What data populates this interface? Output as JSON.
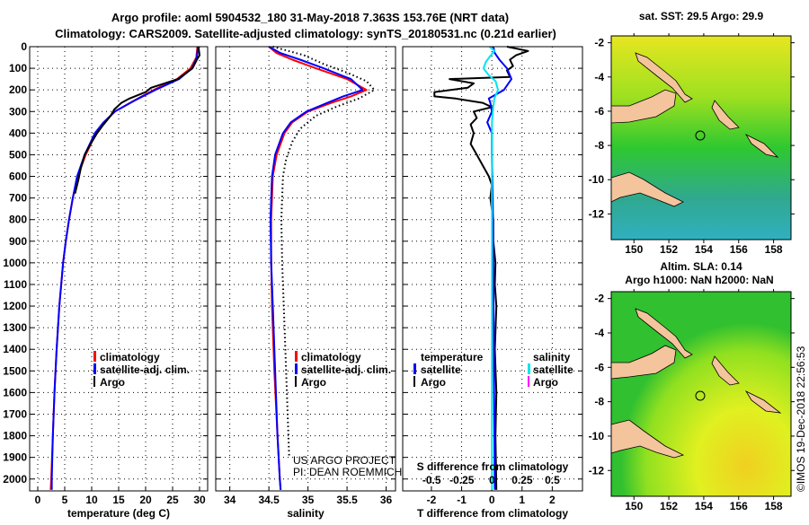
{
  "title_line1": "Argo profile: aoml 5904532_180 31-May-2018 7.363S 153.76E (NRT data)",
  "title_line2": "Climatology: CARS2009. Satellite-adjusted climatology: synTS_20180531.nc (0.21d earlier)",
  "colors": {
    "climatology": "#ff0000",
    "satellite": "#0000ff",
    "argo": "#000000",
    "sal_satellite": "#00e5ee",
    "sal_argo": "#ff00ff"
  },
  "credit": [
    "US ARGO PROJECT",
    "PI: DEAN ROEMMICH"
  ],
  "copyright": "©IMOS 19-Dec-2018 22:56:53",
  "chart_data": [
    {
      "type": "line",
      "name": "temperature-profile",
      "xlabel": "temperature (deg C)",
      "ylabel": "",
      "xlim": [
        -1.5,
        31.5
      ],
      "ylim": [
        2055,
        0
      ],
      "xticks": [
        0,
        5,
        10,
        15,
        20,
        25,
        30
      ],
      "yticks": [
        0,
        100,
        200,
        300,
        400,
        500,
        600,
        700,
        800,
        900,
        1000,
        1100,
        1200,
        1300,
        1400,
        1500,
        1600,
        1700,
        1800,
        1900,
        2000
      ],
      "legend": [
        "climatology",
        "satellite-adj. clim.",
        "Argo"
      ],
      "series": [
        {
          "name": "climatology",
          "depth": [
            0,
            50,
            100,
            150,
            200,
            250,
            300,
            350,
            400,
            500,
            600,
            700,
            800,
            900,
            1000,
            1200,
            1400,
            1600,
            1800,
            2000,
            2050
          ],
          "values": [
            29.6,
            29.4,
            28.3,
            25.8,
            21.5,
            17.8,
            14.3,
            12.3,
            10.8,
            8.9,
            7.4,
            6.5,
            5.8,
            5.2,
            4.7,
            4.0,
            3.5,
            3.1,
            2.8,
            2.5,
            2.4
          ]
        },
        {
          "name": "satellite-adj. clim.",
          "depth": [
            0,
            50,
            100,
            150,
            200,
            250,
            300,
            350,
            400,
            500,
            600,
            700,
            800,
            900,
            1000,
            1200,
            1400,
            1600,
            1800,
            2000,
            2050
          ],
          "values": [
            29.7,
            29.5,
            28.6,
            26.2,
            21.8,
            17.9,
            14.3,
            12.2,
            10.6,
            8.7,
            7.3,
            6.5,
            5.8,
            5.2,
            4.7,
            4.0,
            3.5,
            3.1,
            2.8,
            2.6,
            2.6
          ]
        },
        {
          "name": "Argo",
          "depth": [
            0,
            40,
            60,
            100,
            150,
            190,
            210,
            240,
            260,
            290,
            320,
            360,
            400,
            450,
            500,
            560,
            620,
            680
          ],
          "values": [
            29.8,
            30.0,
            29.5,
            28.7,
            26.0,
            21.0,
            20.0,
            17.0,
            15.5,
            14.2,
            13.5,
            12.2,
            11.0,
            9.8,
            8.7,
            8.0,
            7.5,
            6.9
          ]
        }
      ]
    },
    {
      "type": "line",
      "name": "salinity-profile",
      "xlabel": "salinity",
      "xlim": [
        33.82,
        36.12
      ],
      "ylim": [
        2055,
        0
      ],
      "xticks": [
        34,
        34.5,
        35,
        35.5,
        36
      ],
      "legend": [
        "climatology",
        "satellite-adj. clim.",
        "Argo"
      ],
      "series": [
        {
          "name": "climatology",
          "depth": [
            0,
            30,
            60,
            100,
            150,
            200,
            230,
            260,
            300,
            350,
            400,
            500,
            600,
            800,
            1000,
            1200,
            1500,
            1800,
            2000,
            2050
          ],
          "values": [
            34.5,
            34.6,
            34.8,
            35.1,
            35.5,
            35.75,
            35.55,
            35.3,
            35.0,
            34.8,
            34.7,
            34.6,
            34.55,
            34.53,
            34.53,
            34.54,
            34.57,
            34.61,
            34.64,
            34.65
          ]
        },
        {
          "name": "satellite-adj. clim.",
          "depth": [
            0,
            30,
            60,
            100,
            150,
            200,
            230,
            260,
            300,
            350,
            400,
            500,
            600,
            800,
            1000,
            1200,
            1500,
            1800,
            2000,
            2050
          ],
          "values": [
            34.5,
            34.65,
            34.9,
            35.2,
            35.55,
            35.7,
            35.45,
            35.25,
            34.98,
            34.78,
            34.68,
            34.58,
            34.54,
            34.52,
            34.53,
            34.55,
            34.58,
            34.61,
            34.64,
            34.65
          ]
        },
        {
          "name": "Argo",
          "depth": [
            0,
            40,
            80,
            120,
            160,
            200,
            240,
            280,
            320,
            380,
            440,
            520,
            600,
            800,
            1000,
            1200,
            1500,
            1700,
            1900
          ],
          "values": [
            34.55,
            34.95,
            35.2,
            35.5,
            35.75,
            35.85,
            35.65,
            35.35,
            35.1,
            34.9,
            34.8,
            34.72,
            34.68,
            34.66,
            34.67,
            34.69,
            34.72,
            34.74,
            34.76
          ]
        }
      ]
    },
    {
      "type": "line",
      "name": "difference-profile",
      "xlabel": "T difference from climatology",
      "x2label": "S difference from climatology",
      "xlim": [
        -2.95,
        3.0
      ],
      "x2lim": [
        -0.74,
        0.75
      ],
      "ylim": [
        2055,
        0
      ],
      "xticks": [
        -2,
        -1,
        0,
        1,
        2
      ],
      "x2ticks": [
        -0.5,
        -0.25,
        0,
        0.25,
        0.5
      ],
      "x2ticklabels": [
        "-0.5",
        "-0.25",
        "0",
        "0.25",
        "0.5"
      ],
      "legend_temperature": {
        "title": "temperature",
        "items": [
          "satellite",
          "Argo"
        ]
      },
      "legend_salinity": {
        "title": "salinity",
        "items": [
          "satellite",
          "Argo"
        ]
      },
      "series": [
        {
          "name": "T Argo",
          "depth": [
            0,
            20,
            40,
            60,
            90,
            110,
            140,
            150,
            170,
            190,
            210,
            230,
            240,
            260,
            280,
            300,
            330,
            360,
            400,
            450,
            500,
            550,
            600,
            640,
            700,
            800,
            900,
            1000,
            1100,
            1200,
            1400,
            1600,
            1800,
            2050
          ],
          "values": [
            0.5,
            1.2,
            0.8,
            0.6,
            0.7,
            0.5,
            0.6,
            -1.4,
            -0.6,
            -0.8,
            -1.9,
            -1.9,
            -1.2,
            -0.3,
            0.0,
            -0.6,
            -0.5,
            -0.7,
            -0.6,
            -0.7,
            -0.5,
            -0.3,
            -0.1,
            0.0,
            -0.05,
            0.05,
            0.05,
            0.12,
            0.1,
            0.15,
            0.1,
            0.15,
            0.12,
            0.15
          ]
        },
        {
          "name": "T satellite",
          "depth": [
            0,
            30,
            60,
            100,
            150,
            200,
            240,
            260,
            300,
            350,
            400,
            500,
            700,
            1000,
            1500,
            2050
          ],
          "values": [
            0.05,
            0.1,
            0.25,
            0.5,
            0.65,
            0.4,
            -0.1,
            -0.05,
            0.0,
            -0.15,
            0.0,
            0.0,
            0.03,
            0.05,
            0.07,
            0.1
          ]
        },
        {
          "name": "S satellite",
          "depth": [
            0,
            20,
            40,
            70,
            100,
            130,
            160,
            200,
            240,
            280,
            350,
            500,
            1000,
            2050
          ],
          "values": [
            -0.02,
            0.02,
            -0.01,
            -0.05,
            -0.07,
            -0.03,
            0.03,
            0.05,
            0.02,
            0.01,
            0.0,
            0.0,
            0.0,
            0.0
          ]
        }
      ]
    },
    {
      "type": "heatmap",
      "name": "sst-map",
      "title": "sat. SST: 29.5 Argo: 29.9",
      "xlim": [
        148.7,
        159.0
      ],
      "ylim": [
        -13.5,
        -1.6
      ],
      "xticks": [
        150,
        152,
        154,
        156,
        158
      ],
      "yticks": [
        -2,
        -4,
        -6,
        -8,
        -10,
        -12
      ],
      "marker": {
        "lon": 153.76,
        "lat": -7.363
      }
    },
    {
      "type": "heatmap",
      "name": "sla-map",
      "title": "Altim. SLA: 0.14",
      "subtitle": "Argo h1000: NaN h2000: NaN",
      "xlim": [
        148.7,
        159.0
      ],
      "ylim": [
        -13.5,
        -1.6
      ],
      "xticks": [
        150,
        152,
        154,
        156,
        158
      ],
      "yticks": [
        -2,
        -4,
        -6,
        -8,
        -10,
        -12
      ],
      "marker": {
        "lon": 153.76,
        "lat": -7.363
      }
    }
  ]
}
